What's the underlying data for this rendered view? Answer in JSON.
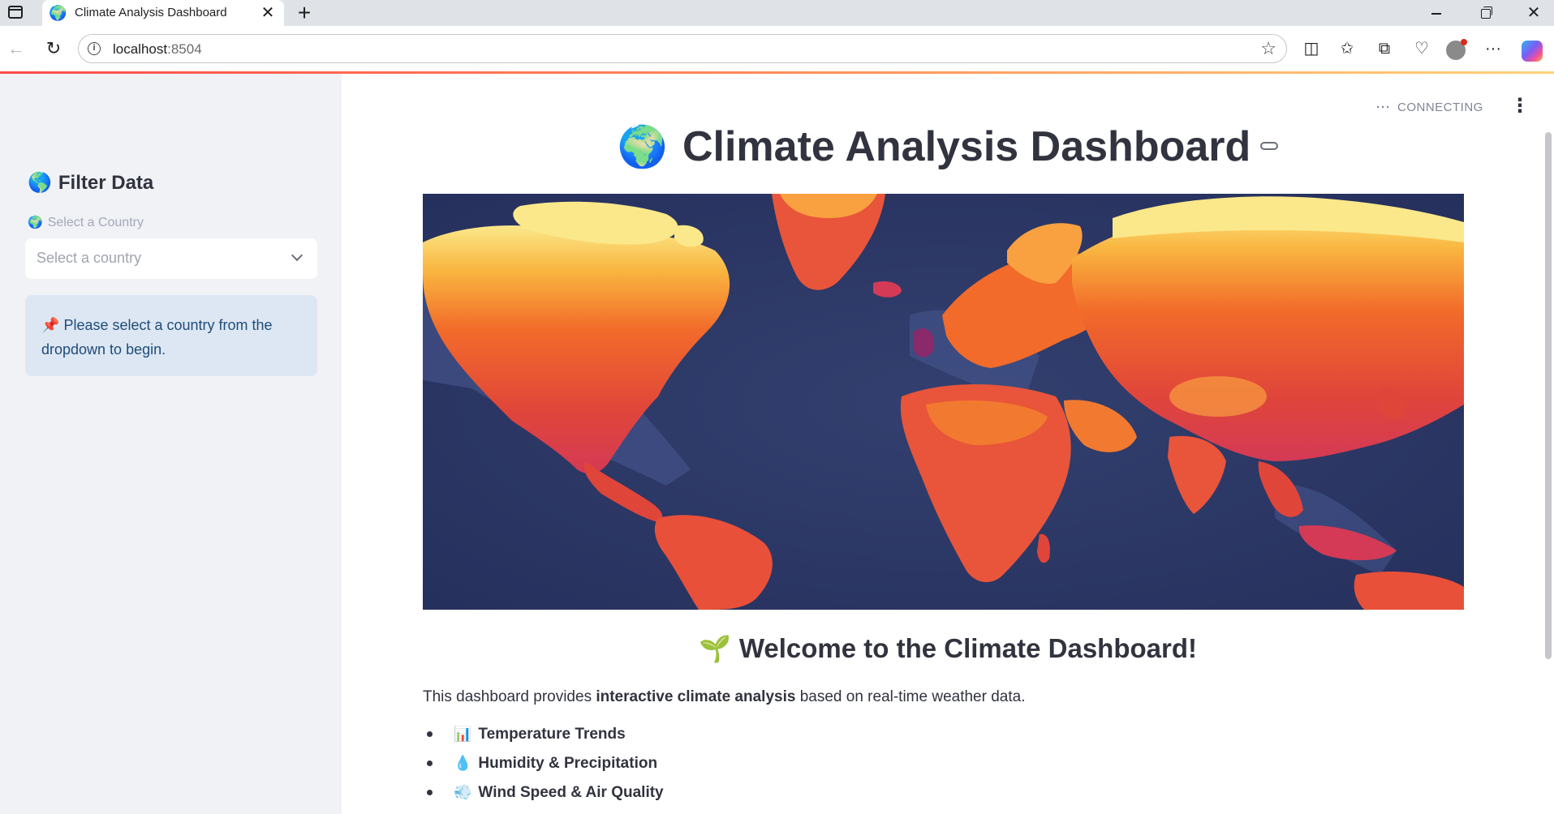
{
  "browser": {
    "tab_title": "Climate Analysis Dashboard",
    "tab_favicon": "🌍",
    "tab_close": "✕",
    "new_tab": "+",
    "url_host": "localhost",
    "url_port": ":8504"
  },
  "sidebar": {
    "heading_emoji": "🌎",
    "heading": "Filter Data",
    "select_label_emoji": "🌍",
    "select_label": "Select a Country",
    "select_placeholder": "Select a country",
    "info_emoji": "📌",
    "info_text": "Please select a country from the dropdown to begin."
  },
  "main": {
    "status_dots": "···",
    "status": "CONNECTING",
    "menu": "⋮",
    "title_emoji": "🌍",
    "title": "Climate Analysis Dashboard",
    "welcome_emoji": "🌱",
    "welcome": "Welcome to the Climate Dashboard!",
    "intro_before": "This dashboard provides ",
    "intro_bold": "interactive climate analysis",
    "intro_after": " based on real-time weather data.",
    "features": [
      {
        "emoji": "📊",
        "label": "Temperature Trends"
      },
      {
        "emoji": "💧",
        "label": "Humidity & Precipitation"
      },
      {
        "emoji": "💨",
        "label": "Wind Speed & Air Quality"
      }
    ]
  },
  "colors": {
    "accent_red": "#ff4b4b",
    "sidebar_bg": "#f0f2f6",
    "info_bg": "#dde7f3",
    "info_text": "#1f4c7a",
    "ocean": "#2c3766",
    "land_hot": "#f06a2a",
    "land_cold": "#fbe88a"
  }
}
